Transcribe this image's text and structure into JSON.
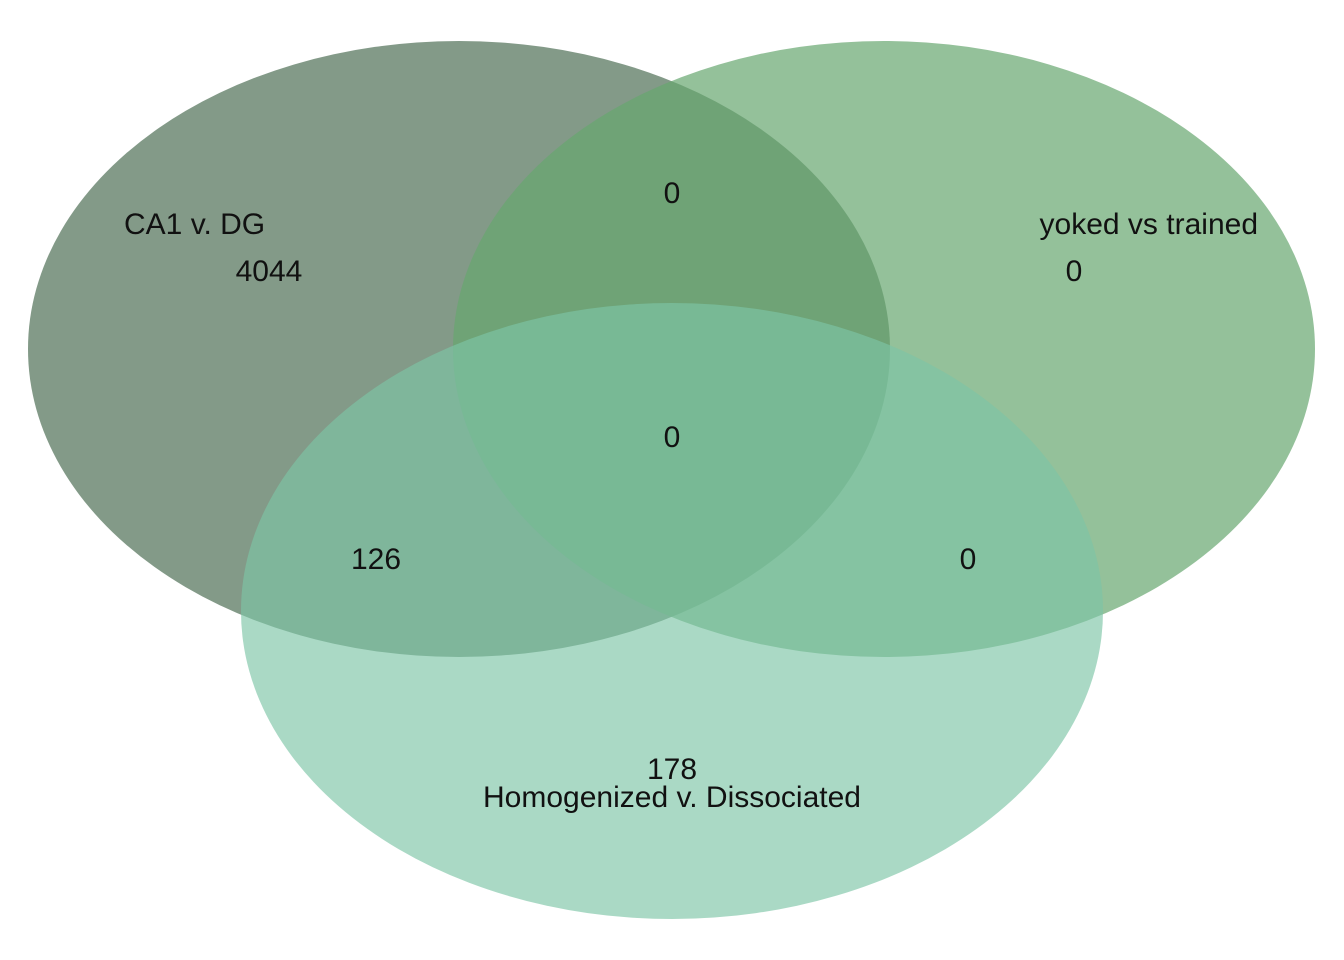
{
  "venn": {
    "sets": [
      {
        "id": "ca1_dg",
        "label": "CA1 v. DG",
        "color": "#4f6f56",
        "opacity": 0.7
      },
      {
        "id": "yoked_trained",
        "label": "yoked vs trained",
        "color": "#66a66f",
        "opacity": 0.7
      },
      {
        "id": "homog_dissoc",
        "label": "Homogenized v. Dissociated",
        "color": "#7cc4a6",
        "opacity": 0.65
      }
    ],
    "regions": {
      "ca1_only": "4044",
      "yoked_only": "0",
      "homog_only": "178",
      "ca1_yoked": "0",
      "ca1_homog": "126",
      "yoked_homog": "0",
      "all_three": "0"
    },
    "background": "#ffffff"
  }
}
